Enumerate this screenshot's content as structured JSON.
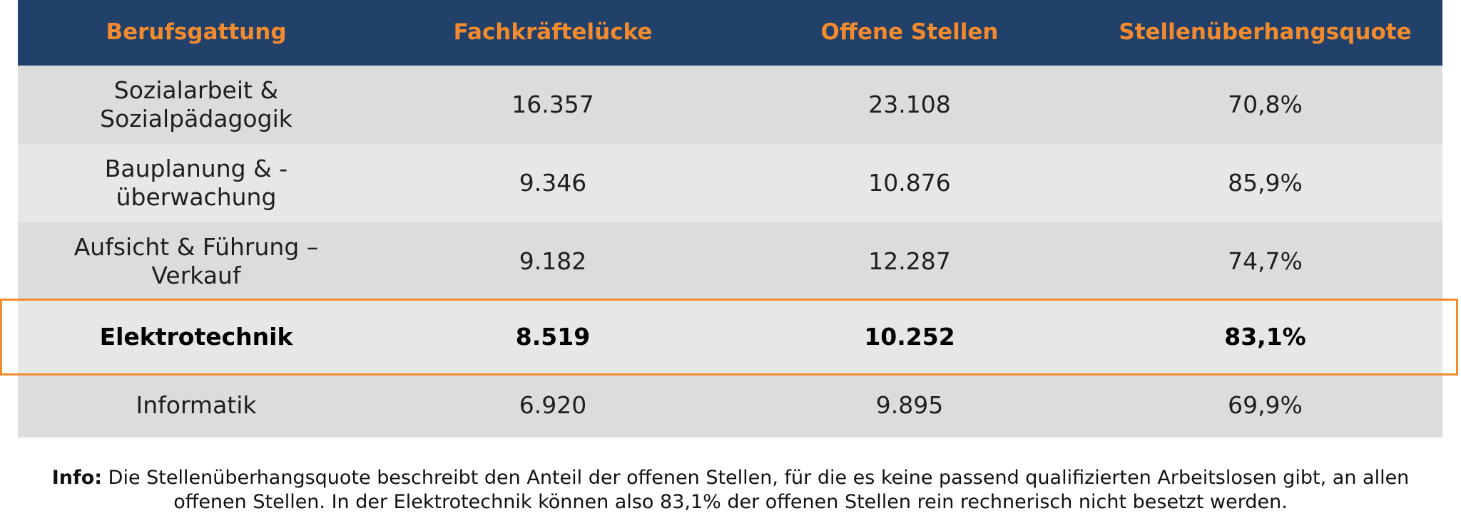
{
  "chart_data": {
    "type": "table",
    "columns": [
      "Berufsgattung",
      "Fachkräftelücke",
      "Offene Stellen",
      "Stellenüberhangsquote"
    ],
    "rows": [
      [
        "Sozialarbeit & Sozialpädagogik",
        "16.357",
        "23.108",
        "70,8%"
      ],
      [
        "Bauplanung & -überwachung",
        "9.346",
        "10.876",
        "85,9%"
      ],
      [
        "Aufsicht & Führung – Verkauf",
        "9.182",
        "12.287",
        "74,7%"
      ],
      [
        "Elektrotechnik",
        "8.519",
        "10.252",
        "83,1%"
      ],
      [
        "Informatik",
        "6.920",
        "9.895",
        "69,9%"
      ]
    ],
    "row_display": [
      [
        "Sozialarbeit &",
        "Sozialpädagogik"
      ],
      [
        "Bauplanung & -",
        "überwachung"
      ],
      [
        "Aufsicht & Führung –",
        "Verkauf"
      ],
      [
        "Elektrotechnik"
      ],
      [
        "Informatik"
      ]
    ],
    "highlighted_row": "Elektrotechnik"
  },
  "info": {
    "label": "Info:",
    "text": "Die Stellenüberhangsquote beschreibt den Anteil der offenen Stellen, für die es keine passend qualifizierten Arbeitslosen gibt, an allen offenen Stellen. In der Elektrotechnik können also 83,1% der offenen Stellen rein rechnerisch nicht besetzt werden."
  },
  "colors": {
    "header_bg": "#21406a",
    "header_text": "#f28a2e",
    "row_bg_dark": "#dcdcdc",
    "row_bg_light": "#e7e7e7",
    "highlight_border": "#f28a2e"
  }
}
